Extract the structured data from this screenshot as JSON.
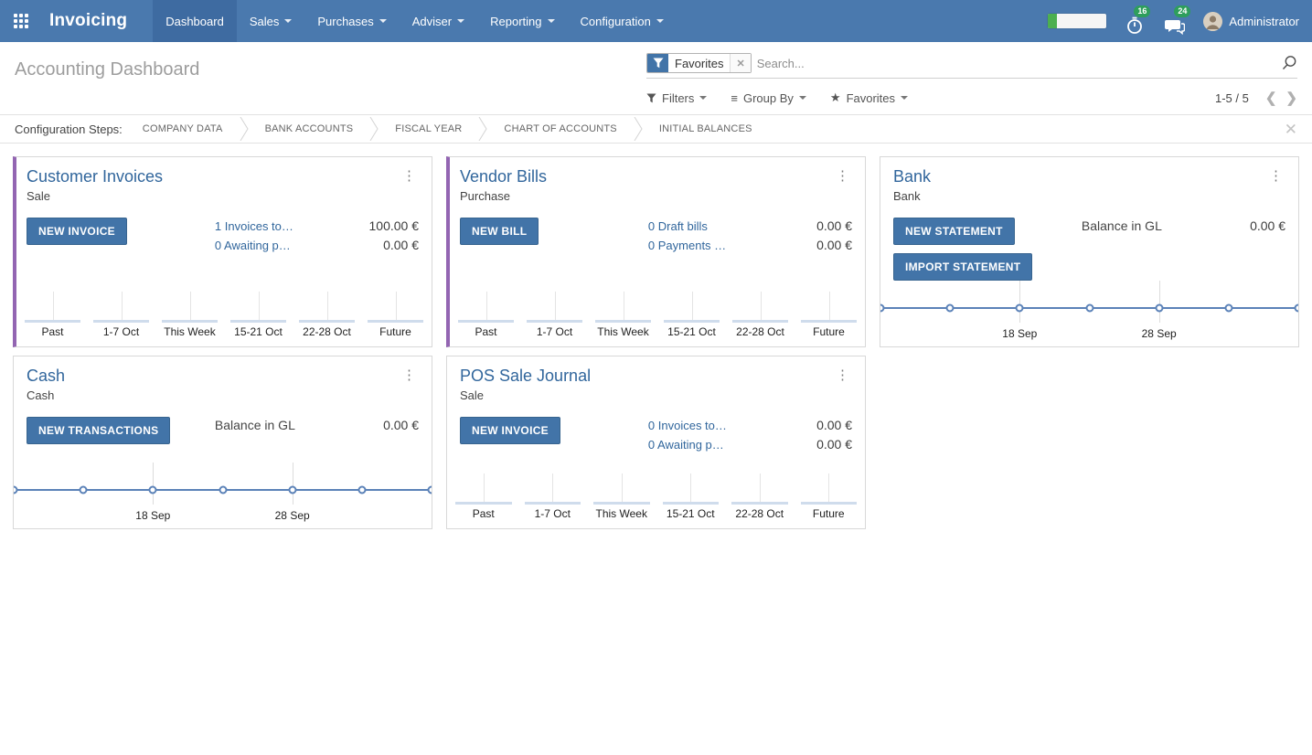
{
  "nav": {
    "brand": "Invoicing",
    "items": [
      {
        "label": "Dashboard"
      },
      {
        "label": "Sales"
      },
      {
        "label": "Purchases"
      },
      {
        "label": "Adviser"
      },
      {
        "label": "Reporting"
      },
      {
        "label": "Configuration"
      }
    ],
    "progress_percent": 15,
    "badges": {
      "activities": "16",
      "messages": "24"
    },
    "user": "Administrator"
  },
  "control_panel": {
    "title": "Accounting Dashboard",
    "search": {
      "facet": "Favorites",
      "placeholder": "Search..."
    },
    "buttons": {
      "filters": "Filters",
      "group_by": "Group By",
      "favorites": "Favorites"
    },
    "pager": {
      "range": "1-5 / 5"
    }
  },
  "config_steps": {
    "label": "Configuration Steps:",
    "steps": [
      "COMPANY DATA",
      "BANK ACCOUNTS",
      "FISCAL YEAR",
      "CHART OF ACCOUNTS",
      "INITIAL BALANCES"
    ]
  },
  "colors": {
    "header": "#4a79ae",
    "accent_purple": "#9365b2",
    "button_blue": "#4274a8",
    "link_blue": "#31669c",
    "badge_green": "#2e9e5c",
    "line_blue": "#5b82b8",
    "bar_fill": "#cfdcec"
  },
  "cards": [
    {
      "title": "Customer Invoices",
      "subtitle": "Sale",
      "buttons": [
        "NEW INVOICE"
      ],
      "rows": [
        {
          "link": "1 Invoices to…",
          "amount": "100.00 €"
        },
        {
          "link": "0 Awaiting p…",
          "amount": "0.00 €"
        }
      ],
      "chart": {
        "type": "bar",
        "categories": [
          "Past",
          "1-7 Oct",
          "This Week",
          "15-21 Oct",
          "22-28 Oct",
          "Future"
        ],
        "values": [
          0,
          0,
          0,
          0,
          0,
          0
        ]
      }
    },
    {
      "title": "Vendor Bills",
      "subtitle": "Purchase",
      "buttons": [
        "NEW BILL"
      ],
      "rows": [
        {
          "link": "0 Draft bills",
          "amount": "0.00 €"
        },
        {
          "link": "0 Payments …",
          "amount": "0.00 €"
        }
      ],
      "chart": {
        "type": "bar",
        "categories": [
          "Past",
          "1-7 Oct",
          "This Week",
          "15-21 Oct",
          "22-28 Oct",
          "Future"
        ],
        "values": [
          0,
          0,
          0,
          0,
          0,
          0
        ]
      }
    },
    {
      "title": "Bank",
      "subtitle": "Bank",
      "buttons": [
        "NEW STATEMENT",
        "IMPORT STATEMENT"
      ],
      "rows": [
        {
          "label": "Balance in GL",
          "amount": "0.00 €"
        }
      ],
      "chart": {
        "type": "line",
        "categories": [
          "18 Sep",
          "28 Sep"
        ],
        "values": [
          0,
          0,
          0,
          0,
          0,
          0,
          0
        ],
        "markers": 7
      }
    },
    {
      "title": "Cash",
      "subtitle": "Cash",
      "buttons": [
        "NEW TRANSACTIONS"
      ],
      "rows": [
        {
          "label": "Balance in GL",
          "amount": "0.00 €"
        }
      ],
      "chart": {
        "type": "line",
        "categories": [
          "18 Sep",
          "28 Sep"
        ],
        "values": [
          0,
          0,
          0,
          0,
          0,
          0,
          0
        ],
        "markers": 7
      }
    },
    {
      "title": "POS Sale Journal",
      "subtitle": "Sale",
      "buttons": [
        "NEW INVOICE"
      ],
      "rows": [
        {
          "link": "0 Invoices to…",
          "amount": "0.00 €"
        },
        {
          "link": "0 Awaiting p…",
          "amount": "0.00 €"
        }
      ],
      "chart": {
        "type": "bar",
        "categories": [
          "Past",
          "1-7 Oct",
          "This Week",
          "15-21 Oct",
          "22-28 Oct",
          "Future"
        ],
        "values": [
          0,
          0,
          0,
          0,
          0,
          0
        ]
      }
    }
  ]
}
